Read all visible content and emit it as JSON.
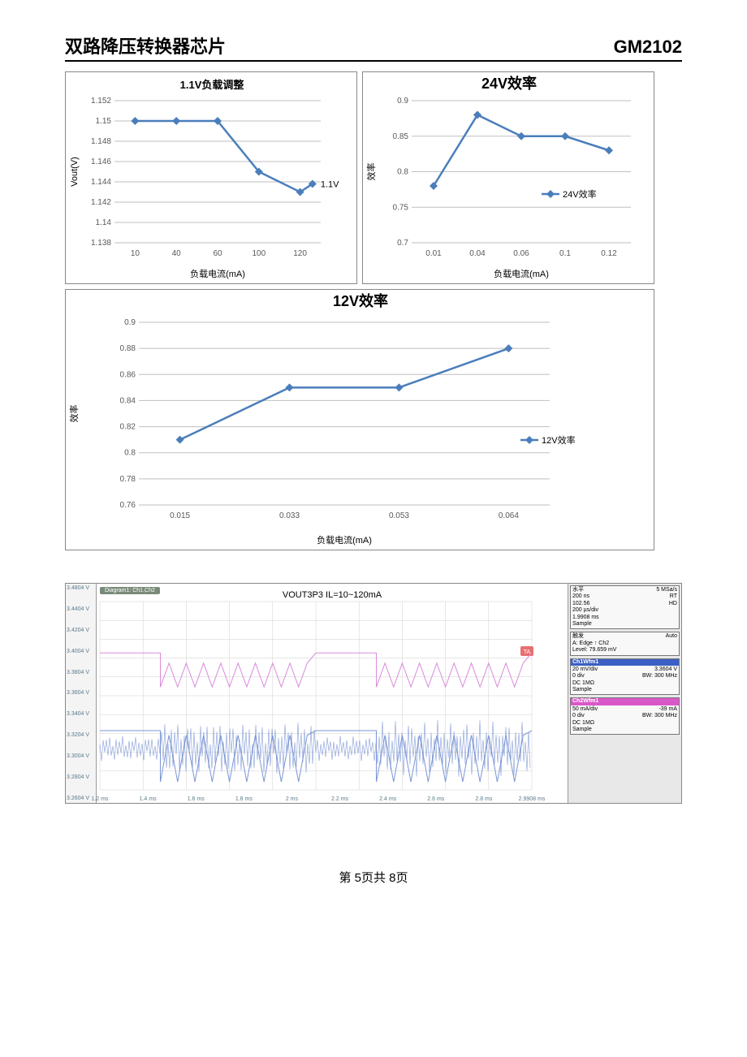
{
  "header": {
    "title": "双路降压转换器芯片",
    "part": "GM2102"
  },
  "chart1": {
    "type": "line",
    "title": "1.1V负载调整",
    "xlabel": "负载电流(mA)",
    "ylabel": "Vout(V)",
    "series_label": "1.1V",
    "xticks": [
      "10",
      "40",
      "60",
      "100",
      "120"
    ],
    "yticks": [
      "1.138",
      "1.14",
      "1.142",
      "1.144",
      "1.146",
      "1.148",
      "1.15",
      "1.152"
    ],
    "ylim_min": 1.138,
    "ylim_max": 1.152,
    "values": [
      1.15,
      1.15,
      1.15,
      1.145,
      1.143,
      1.1438
    ],
    "x_positions": [
      0,
      1,
      2,
      3,
      4,
      4.3
    ],
    "line_color": "#4a7ebb",
    "marker_color": "#4a7ebb",
    "grid_color": "#bfbfbf",
    "title_fontsize": 13,
    "label_fontsize": 11
  },
  "chart2": {
    "type": "line",
    "title": "24V效率",
    "xlabel": "负载电流(mA)",
    "ylabel": "效率",
    "series_label": "24V效率",
    "xticks": [
      "0.01",
      "0.04",
      "0.06",
      "0.1",
      "0.12"
    ],
    "yticks": [
      "0.7",
      "0.75",
      "0.8",
      "0.85",
      "0.9"
    ],
    "ylim_min": 0.7,
    "ylim_max": 0.9,
    "values": [
      0.78,
      0.88,
      0.85,
      0.85,
      0.83
    ],
    "x_positions": [
      0,
      1,
      2,
      3,
      4
    ],
    "line_color": "#4a7ebb",
    "marker_color": "#4a7ebb",
    "grid_color": "#bfbfbf",
    "title_fontsize": 18,
    "label_fontsize": 11
  },
  "chart3": {
    "type": "line",
    "title": "12V效率",
    "xlabel": "负载电流(mA)",
    "ylabel": "效率",
    "series_label": "12V效率",
    "xticks": [
      "0.015",
      "0.033",
      "0.053",
      "0.064"
    ],
    "yticks": [
      "0.76",
      "0.78",
      "0.8",
      "0.82",
      "0.84",
      "0.86",
      "0.88",
      "0.9"
    ],
    "ylim_min": 0.76,
    "ylim_max": 0.9,
    "values": [
      0.81,
      0.85,
      0.85,
      0.88
    ],
    "x_positions": [
      0,
      1,
      2,
      3
    ],
    "line_color": "#4a7ebb",
    "marker_color": "#4a7ebb",
    "grid_color": "#bfbfbf",
    "title_fontsize": 18,
    "label_fontsize": 11
  },
  "oscope": {
    "title_tab": "Diagram1: Ch1,Ch2",
    "chart_label": "VOUT3P3 IL=10~120mA",
    "y_ticks": [
      "3.4804 V",
      "3.4404 V",
      "3.4204 V",
      "3.4004 V",
      "3.3804 V",
      "3.3604 V",
      "3.3404 V",
      "3.3204 V",
      "3.3004 V",
      "3.2804 V",
      "3.2604 V"
    ],
    "x_ticks": [
      "1.2 ms",
      "1.4 ms",
      "1.6 ms",
      "1.8 ms",
      "2 ms",
      "2.2 ms",
      "2.4 ms",
      "2.6 ms",
      "2.8 ms",
      "2.9908 ms"
    ],
    "right_panel": {
      "horiz": {
        "label": "水平",
        "lines": [
          "200 ns",
          "102.56",
          "200 µs/div",
          "1.9908 ms",
          "Sample"
        ],
        "right": [
          "5 MSa/s",
          "RT",
          "HD"
        ]
      },
      "trig": {
        "label": "触发",
        "lines": [
          "A: Edge ↑ Ch2",
          "Level: 79.659 mV"
        ],
        "right": [
          "Auto"
        ]
      },
      "ch1": {
        "header": "Ch1Wfm1",
        "header_color": "#3b5fc4",
        "lines": [
          "20 mV/div",
          "0 div",
          "DC 1MΩ",
          "Sample"
        ],
        "right": [
          "3.3604 V",
          "BW: 300 MHz"
        ]
      },
      "ch2": {
        "header": "Ch2Wfm1",
        "header_color": "#d958c8",
        "lines": [
          "50 mA/div",
          "0 div",
          "DC 1MΩ",
          "Sample"
        ],
        "right": [
          "-39 mA",
          "BW: 300 MHz"
        ]
      }
    },
    "trace1_color": "#d98ad9",
    "trace2_color": "#7a95d4",
    "grid_color": "#cfcfcf",
    "ta_badge": "TA"
  },
  "footer": {
    "text": "第 5页共 8页"
  }
}
